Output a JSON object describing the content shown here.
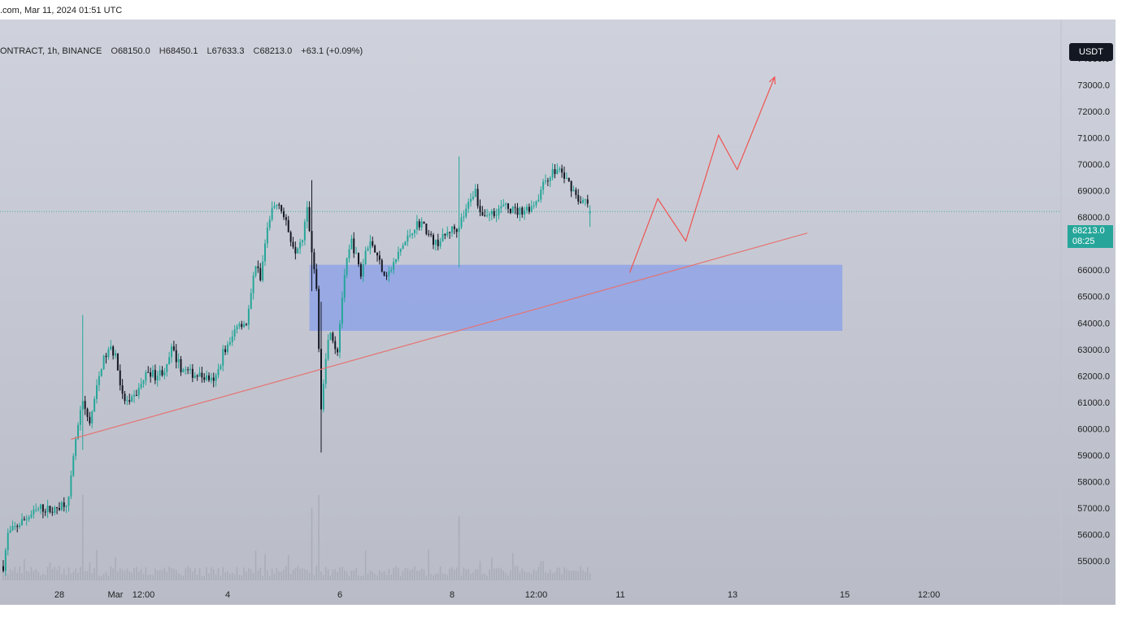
{
  "caption": {
    "text": ".com, Mar 11, 2024 01:51 UTC"
  },
  "legend": {
    "symbol_text": "ONTRACT, 1h, BINANCE",
    "open_label": "O",
    "open": "68150.0",
    "high_label": "H",
    "high": "68450.1",
    "low_label": "L",
    "low": "67633.3",
    "close_label": "C",
    "close": "68213.0",
    "change": "+63.1 (+0.09%)"
  },
  "currency": "USDT",
  "last_price": {
    "value": "68213.0",
    "countdown": "08:25"
  },
  "colors": {
    "up": "#26a69a",
    "down": "#131722",
    "zone": "#8fa3e6",
    "trendline": "#e57373",
    "projection": "#ef5350",
    "background_top": "#cfd2dc",
    "background_bottom": "#b9bcc7"
  },
  "chart_data": {
    "type": "candlestick",
    "interval": "1h",
    "ylim": [
      54500,
      75000
    ],
    "y_ticks": [
      55000,
      56000,
      57000,
      58000,
      59000,
      60000,
      61000,
      62000,
      63000,
      64000,
      65000,
      66000,
      67000,
      68000,
      69000,
      70000,
      71000,
      72000,
      73000,
      74000
    ],
    "y_tick_labels": [
      "55000.0",
      "56000.0",
      "57000.0",
      "58000.0",
      "59000.0",
      "60000.0",
      "61000.0",
      "62000.0",
      "63000.0",
      "64000.0",
      "65000.0",
      "66000.0",
      "67000.0",
      "68000.0",
      "69000.0",
      "70000.0",
      "71000.0",
      "72000.0",
      "73000.0",
      "74000.0"
    ],
    "x_axis": [
      {
        "label": "28",
        "t": 0
      },
      {
        "label": "Mar",
        "t": 24
      },
      {
        "label": "12:00",
        "t": 36
      },
      {
        "label": "4",
        "t": 72
      },
      {
        "label": "6",
        "t": 120
      },
      {
        "label": "8",
        "t": 168
      },
      {
        "label": "12:00",
        "t": 204
      },
      {
        "label": "11",
        "t": 240
      },
      {
        "label": "13",
        "t": 288
      },
      {
        "label": "15",
        "t": 336
      },
      {
        "label": "12:00",
        "t": 372
      }
    ],
    "price_path": [
      [
        -24,
        54800
      ],
      [
        -22,
        56000
      ],
      [
        -16,
        56500
      ],
      [
        -8,
        57000
      ],
      [
        -2,
        56900
      ],
      [
        0,
        57100
      ],
      [
        4,
        57300
      ],
      [
        7,
        59600
      ],
      [
        10,
        61000
      ],
      [
        13,
        60200
      ],
      [
        16,
        61500
      ],
      [
        18,
        62400
      ],
      [
        20,
        62800
      ],
      [
        22,
        63000
      ],
      [
        24,
        62800
      ],
      [
        27,
        61200
      ],
      [
        30,
        60900
      ],
      [
        34,
        61500
      ],
      [
        38,
        62200
      ],
      [
        41,
        62000
      ],
      [
        46,
        62300
      ],
      [
        48,
        63000
      ],
      [
        52,
        62300
      ],
      [
        56,
        62100
      ],
      [
        60,
        62000
      ],
      [
        64,
        61900
      ],
      [
        66,
        61700
      ],
      [
        68,
        62200
      ],
      [
        70,
        62900
      ],
      [
        73,
        63200
      ],
      [
        76,
        64000
      ],
      [
        80,
        64000
      ],
      [
        82,
        65000
      ],
      [
        84,
        66300
      ],
      [
        86,
        65600
      ],
      [
        88,
        67000
      ],
      [
        91,
        68300
      ],
      [
        94,
        68600
      ],
      [
        96,
        68000
      ],
      [
        99,
        67200
      ],
      [
        101,
        66800
      ],
      [
        104,
        67300
      ],
      [
        106,
        68500
      ],
      [
        108,
        66700
      ],
      [
        110,
        65400
      ],
      [
        112,
        60900
      ],
      [
        114,
        62800
      ],
      [
        116,
        63800
      ],
      [
        118,
        63100
      ],
      [
        119,
        63000
      ],
      [
        121,
        65000
      ],
      [
        123,
        66300
      ],
      [
        125,
        67100
      ],
      [
        127,
        66500
      ],
      [
        129,
        65800
      ],
      [
        131,
        66700
      ],
      [
        133,
        67200
      ],
      [
        135,
        66700
      ],
      [
        137,
        66300
      ],
      [
        139,
        65900
      ],
      [
        141,
        65900
      ],
      [
        143,
        66200
      ],
      [
        146,
        66800
      ],
      [
        149,
        67200
      ],
      [
        152,
        67700
      ],
      [
        155,
        67800
      ],
      [
        158,
        67300
      ],
      [
        161,
        67000
      ],
      [
        164,
        67200
      ],
      [
        167,
        67500
      ],
      [
        170,
        67600
      ],
      [
        174,
        68200
      ],
      [
        176,
        68800
      ],
      [
        178,
        69000
      ],
      [
        180,
        68200
      ],
      [
        183,
        68100
      ],
      [
        186,
        68200
      ],
      [
        190,
        68400
      ],
      [
        193,
        68300
      ],
      [
        196,
        68200
      ],
      [
        199,
        68300
      ],
      [
        202,
        68400
      ],
      [
        205,
        68800
      ],
      [
        208,
        69400
      ],
      [
        211,
        69700
      ],
      [
        214,
        69800
      ],
      [
        216,
        69500
      ],
      [
        218,
        69300
      ],
      [
        220,
        69000
      ],
      [
        221,
        68900
      ],
      [
        223,
        68500
      ],
      [
        225,
        68600
      ],
      [
        227,
        68213
      ]
    ],
    "wick_extremes": [
      {
        "t": 10,
        "high": 64300,
        "low": 59200
      },
      {
        "t": 108,
        "high": 69400,
        "low": 65200
      },
      {
        "t": 112,
        "high": 64800,
        "low": 59100
      },
      {
        "t": 171,
        "high": 70300,
        "low": 66100
      },
      {
        "t": 227,
        "high": 68450.1,
        "low": 67633.3
      }
    ],
    "volume_spikes": [
      {
        "t": 10,
        "v": 1.0
      },
      {
        "t": 108,
        "v": 0.85
      },
      {
        "t": 111,
        "v": 1.0
      },
      {
        "t": 171,
        "v": 0.75
      },
      {
        "t": 131,
        "v": 0.35
      },
      {
        "t": 84,
        "v": 0.35
      }
    ],
    "support_zone": {
      "t_start": 107,
      "t_end": 335,
      "low": 63700,
      "high": 66200
    },
    "trendline": {
      "t1": 5,
      "p1": 59600,
      "t2": 320,
      "p2": 67400
    },
    "projection": [
      [
        244,
        65900
      ],
      [
        256,
        68700
      ],
      [
        268,
        67100
      ],
      [
        282,
        71100
      ],
      [
        290,
        69800
      ],
      [
        306,
        73300
      ]
    ],
    "last_price_level": 68213.0
  }
}
